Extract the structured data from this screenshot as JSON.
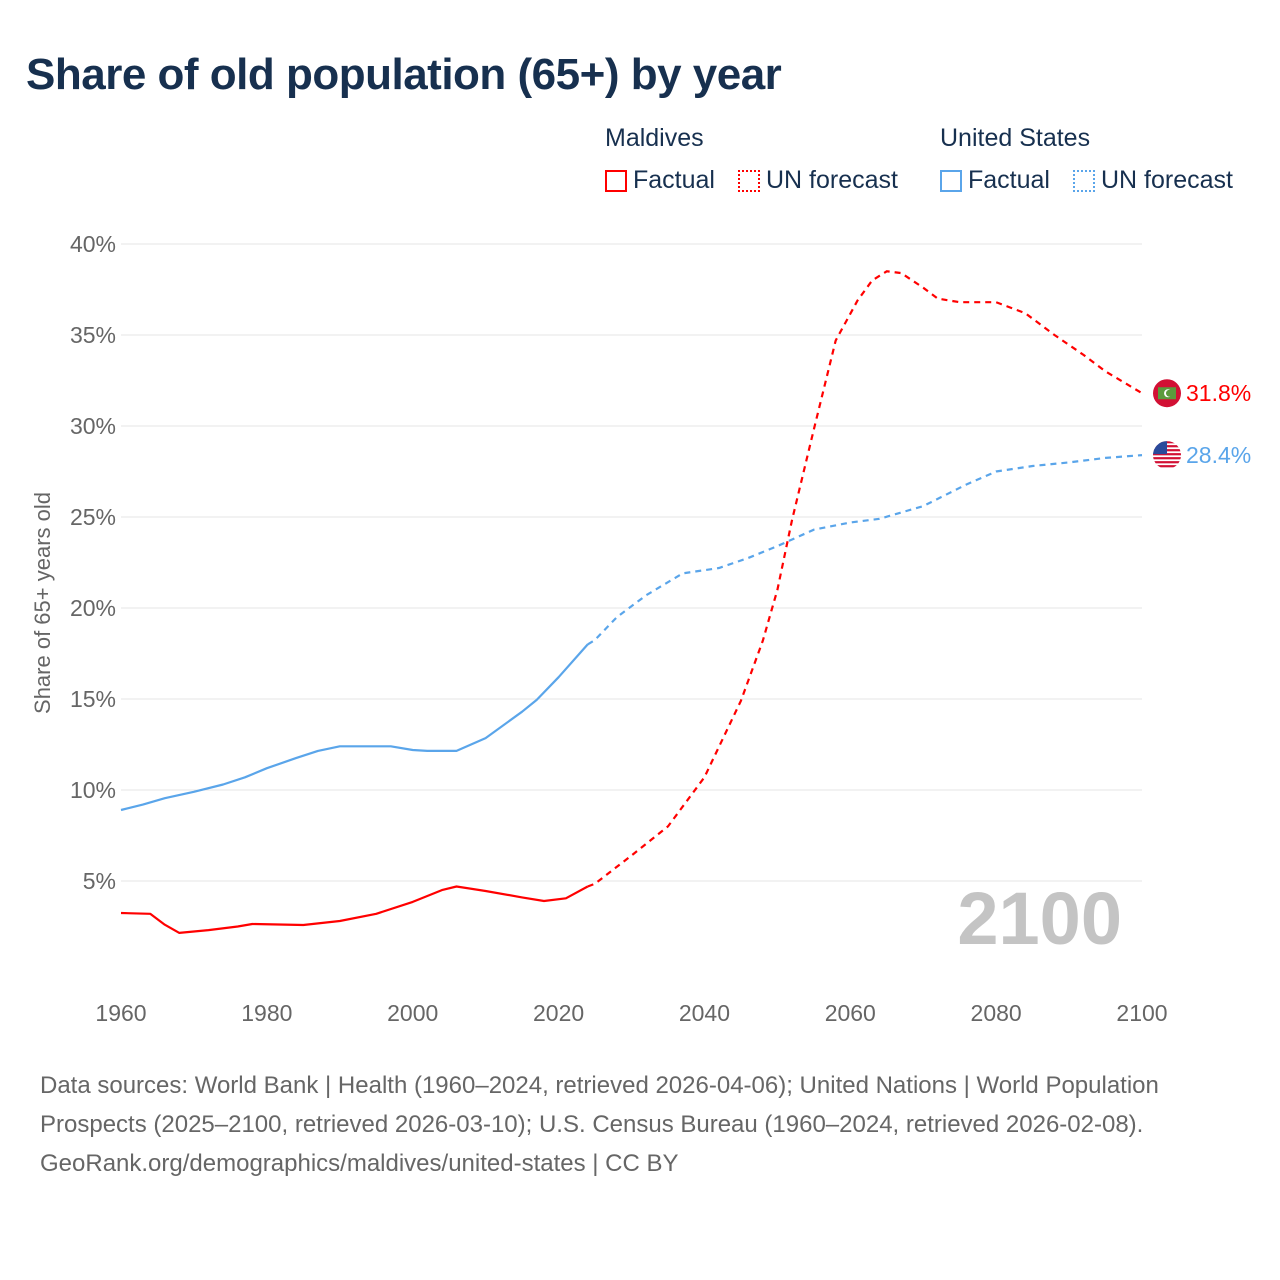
{
  "title": "Share of old population (65+) by year",
  "legend": {
    "groups": [
      {
        "country": "Maldives",
        "factual": "Factual",
        "forecast": "UN forecast",
        "color": "#ff0000"
      },
      {
        "country": "United States",
        "factual": "Factual",
        "forecast": "UN forecast",
        "color": "#5aa5ea"
      }
    ]
  },
  "year_watermark": "2100",
  "source": {
    "text": "Data sources: World Bank | Health (1960–2024, retrieved 2026-04-06); United Nations | World Population Prospects (2025–2100, retrieved 2026-03-10); U.S. Census Bureau (1960–2024, retrieved 2026-02-08).",
    "link": "GeoRank.org/demographics/maldives/united-states | CC BY"
  },
  "chart_data": {
    "type": "line",
    "title": "Share of old population (65+) by year",
    "xlabel": "",
    "ylabel": "Share of 65+ years old",
    "xlim": [
      1960,
      2100
    ],
    "ylim": [
      0,
      40
    ],
    "x_ticks": [
      "1960",
      "1980",
      "2000",
      "2020",
      "2040",
      "2060",
      "2080",
      "2100"
    ],
    "y_ticks": [
      "5%",
      "10%",
      "15%",
      "20%",
      "25%",
      "30%",
      "35%",
      "40%"
    ],
    "grid": true,
    "legend_position": "top-right",
    "series": [
      {
        "name": "Maldives",
        "color": "#ff0000",
        "end_label": "31.8%",
        "flag": "maldives-flag-icon",
        "factual": [
          [
            1960,
            3.24
          ],
          [
            1964,
            3.2
          ],
          [
            1966,
            2.6
          ],
          [
            1968,
            2.15
          ],
          [
            1972,
            2.3
          ],
          [
            1976,
            2.5
          ],
          [
            1978,
            2.64
          ],
          [
            1985,
            2.58
          ],
          [
            1990,
            2.8
          ],
          [
            1995,
            3.2
          ],
          [
            2000,
            3.85
          ],
          [
            2004,
            4.5
          ],
          [
            2006,
            4.7
          ],
          [
            2010,
            4.45
          ],
          [
            2015,
            4.1
          ],
          [
            2018,
            3.9
          ],
          [
            2021,
            4.05
          ],
          [
            2024,
            4.7
          ]
        ],
        "forecast": [
          [
            2024,
            4.7
          ],
          [
            2025,
            4.85
          ],
          [
            2030,
            6.4
          ],
          [
            2035,
            8.0
          ],
          [
            2040,
            10.7
          ],
          [
            2045,
            14.9
          ],
          [
            2048,
            18.2
          ],
          [
            2050,
            21
          ],
          [
            2052,
            24.8
          ],
          [
            2055,
            29.8
          ],
          [
            2058,
            34.7
          ],
          [
            2061,
            36.9
          ],
          [
            2063,
            38
          ],
          [
            2065,
            38.5
          ],
          [
            2067,
            38.4
          ],
          [
            2070,
            37.6
          ],
          [
            2072,
            37.0
          ],
          [
            2075,
            36.8
          ],
          [
            2080,
            36.8
          ],
          [
            2084,
            36.2
          ],
          [
            2088,
            35
          ],
          [
            2092,
            33.9
          ],
          [
            2095,
            33
          ],
          [
            2100,
            31.8
          ]
        ]
      },
      {
        "name": "United States",
        "color": "#5aa5ea",
        "end_label": "28.4%",
        "flag": "us-flag-icon",
        "factual": [
          [
            1960,
            8.9
          ],
          [
            1963,
            9.2
          ],
          [
            1966,
            9.55
          ],
          [
            1970,
            9.9
          ],
          [
            1974,
            10.3
          ],
          [
            1977,
            10.7
          ],
          [
            1980,
            11.2
          ],
          [
            1984,
            11.75
          ],
          [
            1987,
            12.15
          ],
          [
            1990,
            12.4
          ],
          [
            1997,
            12.4
          ],
          [
            2000,
            12.2
          ],
          [
            2002,
            12.15
          ],
          [
            2006,
            12.15
          ],
          [
            2010,
            12.85
          ],
          [
            2015,
            14.3
          ],
          [
            2017,
            14.95
          ],
          [
            2020,
            16.2
          ],
          [
            2024,
            18.0
          ]
        ],
        "forecast": [
          [
            2024,
            18.0
          ],
          [
            2025,
            18.25
          ],
          [
            2028,
            19.5
          ],
          [
            2032,
            20.7
          ],
          [
            2037,
            21.9
          ],
          [
            2042,
            22.2
          ],
          [
            2046,
            22.75
          ],
          [
            2050,
            23.4
          ],
          [
            2055,
            24.3
          ],
          [
            2060,
            24.7
          ],
          [
            2064,
            24.9
          ],
          [
            2070,
            25.6
          ],
          [
            2076,
            26.8
          ],
          [
            2080,
            27.5
          ],
          [
            2085,
            27.8
          ],
          [
            2090,
            28.0
          ],
          [
            2095,
            28.25
          ],
          [
            2100,
            28.4
          ]
        ]
      }
    ]
  }
}
